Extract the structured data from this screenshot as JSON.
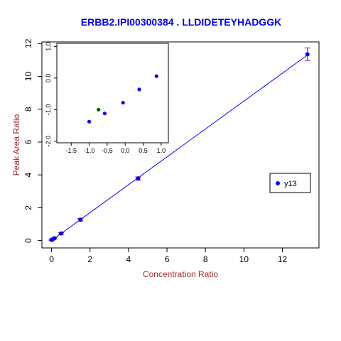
{
  "chart_data": {
    "type": "scatter",
    "title": "ERBB2.IPI00300384 . LLDIDETEYHADGGK",
    "xlabel": "Concentration Ratio",
    "ylabel": "Peak Area Ratio",
    "xlim": [
      -0.5,
      13.9
    ],
    "ylim": [
      -0.45,
      12.1
    ],
    "xticks": [
      "0",
      "2",
      "4",
      "6",
      "8",
      "10",
      "12"
    ],
    "yticks": [
      "0",
      "2",
      "4",
      "6",
      "8",
      "10",
      "12"
    ],
    "grid": false,
    "legend": {
      "placement": "right",
      "entries": [
        "y13"
      ]
    },
    "colors": {
      "series": "#0000ff",
      "highlight": "#006400",
      "title": "#0000ee",
      "axis_label": "#a52a2a",
      "error_bar": "#8b008b"
    },
    "series": [
      {
        "name": "y13",
        "x": [
          0.0,
          0.05,
          0.15,
          0.5,
          1.5,
          4.5,
          13.3
        ],
        "y": [
          0.04,
          0.07,
          0.14,
          0.43,
          1.27,
          3.78,
          11.35
        ],
        "err": [
          0.03,
          0.03,
          0.04,
          0.05,
          0.08,
          0.1,
          0.38
        ]
      }
    ],
    "fit_line": {
      "x": [
        0.0,
        13.3
      ],
      "y": [
        0.0,
        11.3
      ]
    },
    "inset": {
      "type": "scatter",
      "xlim": [
        -1.9,
        1.2
      ],
      "ylim": [
        -2.05,
        1.1
      ],
      "xticks": [
        "-1.5",
        "-1.0",
        "-0.5",
        "0.0",
        "0.5",
        "1.0"
      ],
      "yticks": [
        "-2.0",
        "-1.0",
        "0.0",
        "1.0"
      ],
      "points": [
        {
          "x": -1.0,
          "y": -1.38,
          "color": "#0000ff"
        },
        {
          "x": -0.74,
          "y": -1.0,
          "color": "#006400"
        },
        {
          "x": -0.57,
          "y": -1.12,
          "color": "#0000ff"
        },
        {
          "x": -0.06,
          "y": -0.78,
          "color": "#0000ff"
        },
        {
          "x": 0.39,
          "y": -0.36,
          "color": "#0000ff"
        },
        {
          "x": 0.87,
          "y": 0.06,
          "color": "#0000ff"
        }
      ]
    }
  }
}
